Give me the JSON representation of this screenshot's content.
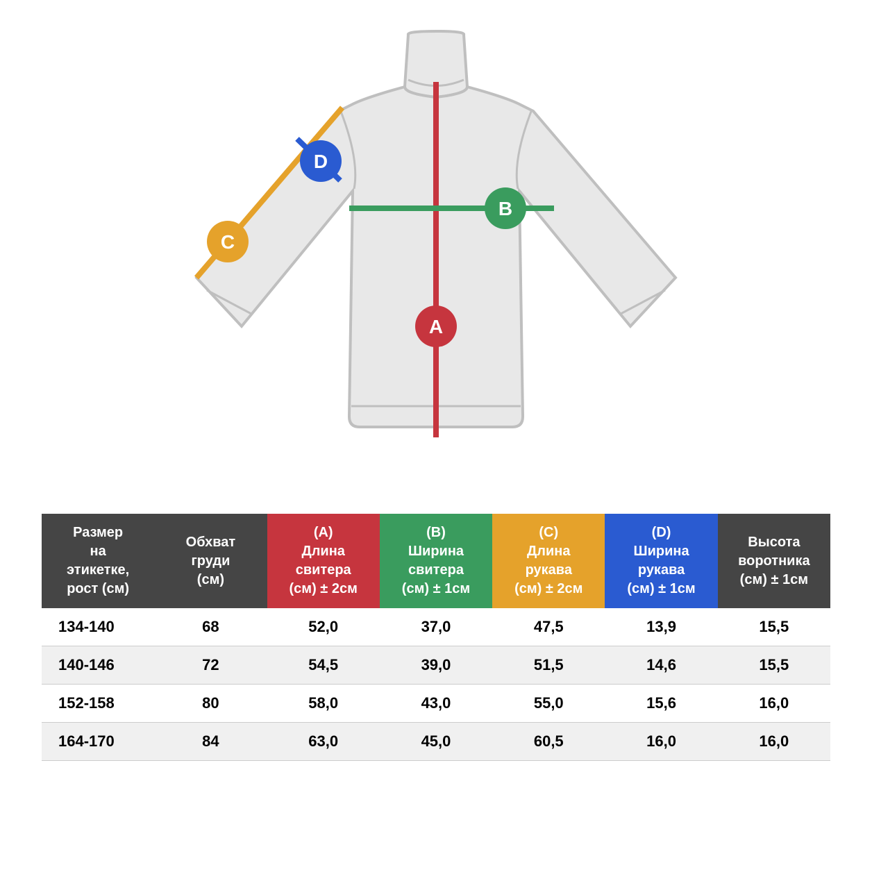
{
  "diagram": {
    "sweater_fill": "#e8e8e8",
    "sweater_stroke": "#bfbfbf",
    "sweater_stroke_width": 4,
    "markers": {
      "A": {
        "label": "A",
        "color": "#c6353e",
        "line_width": 8,
        "circle_r": 30,
        "font_size": 28
      },
      "B": {
        "label": "B",
        "color": "#3a9c5e",
        "line_width": 8,
        "circle_r": 30,
        "font_size": 28
      },
      "C": {
        "label": "C",
        "color": "#e5a22b",
        "line_width": 8,
        "circle_r": 30,
        "font_size": 28
      },
      "D": {
        "label": "D",
        "color": "#2a5bd1",
        "line_width": 8,
        "circle_r": 30,
        "font_size": 28
      }
    },
    "label_text_color": "#ffffff"
  },
  "table": {
    "header_bg_default": "#454545",
    "columns": [
      {
        "key": "size",
        "label": "Размер на этикетке, рост (см)",
        "bg": "#454545"
      },
      {
        "key": "chest",
        "label": "Обхват груди (см)",
        "bg": "#454545"
      },
      {
        "key": "A",
        "label": "(A) Длина свитера (см) ± 2см",
        "bg": "#c6353e"
      },
      {
        "key": "B",
        "label": "(B) Ширина свитера (см) ± 1см",
        "bg": "#3a9c5e"
      },
      {
        "key": "C",
        "label": "(C) Длина рукава (см) ± 2см",
        "bg": "#e5a22b"
      },
      {
        "key": "D",
        "label": "(D) Ширина рукава (см) ± 1см",
        "bg": "#2a5bd1"
      },
      {
        "key": "collar",
        "label": "Высота воротника (см) ± 1см",
        "bg": "#454545"
      }
    ],
    "rows": [
      {
        "size": "134-140",
        "chest": "68",
        "A": "52,0",
        "B": "37,0",
        "C": "47,5",
        "D": "13,9",
        "collar": "15,5"
      },
      {
        "size": "140-146",
        "chest": "72",
        "A": "54,5",
        "B": "39,0",
        "C": "51,5",
        "D": "14,6",
        "collar": "15,5"
      },
      {
        "size": "152-158",
        "chest": "80",
        "A": "58,0",
        "B": "43,0",
        "C": "55,0",
        "D": "15,6",
        "collar": "16,0"
      },
      {
        "size": "164-170",
        "chest": "84",
        "A": "63,0",
        "B": "45,0",
        "C": "60,5",
        "D": "16,0",
        "collar": "16,0"
      }
    ],
    "header_font_size": 20,
    "cell_font_size": 22,
    "row_border_color": "#cccccc",
    "row_alt_bg": "#f0f0f0"
  }
}
